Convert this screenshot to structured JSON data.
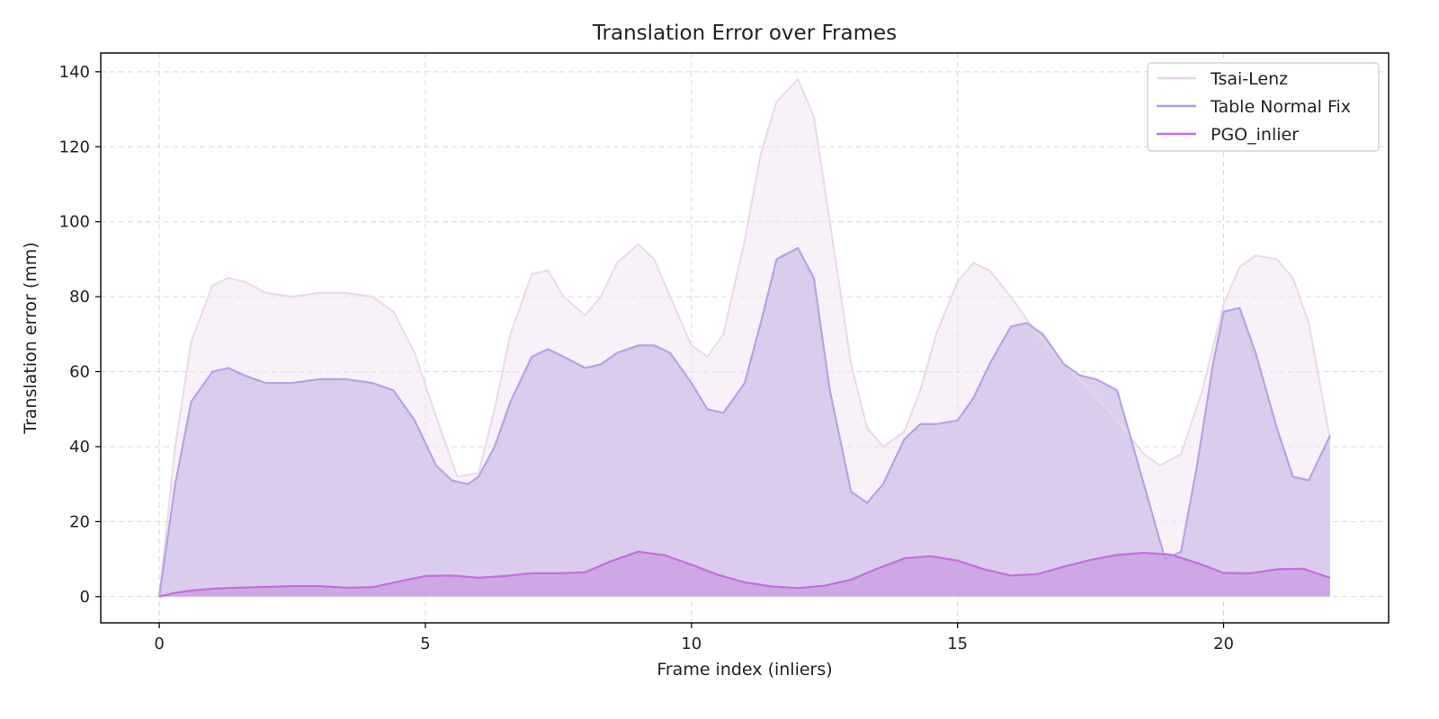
{
  "chart_data": {
    "type": "area",
    "title": "Translation Error over Frames",
    "xlabel": "Frame index (inliers)",
    "ylabel": "Translation error (mm)",
    "xlim": [
      -1.1,
      23.1
    ],
    "ylim": [
      -7,
      145
    ],
    "xticks": [
      0,
      5,
      10,
      15,
      20
    ],
    "yticks": [
      0,
      20,
      40,
      60,
      80,
      100,
      120,
      140
    ],
    "grid": true,
    "legend_position": "top-right",
    "series": [
      {
        "name": "Tsai-Lenz",
        "color": "#e8d5ea",
        "fill": "#f2e8f3",
        "x": [
          0,
          0.3,
          0.6,
          1,
          1.3,
          1.6,
          2,
          2.5,
          3,
          3.5,
          4,
          4.4,
          4.8,
          5.2,
          5.6,
          6,
          6.3,
          6.6,
          7,
          7.3,
          7.6,
          8,
          8.3,
          8.6,
          9,
          9.3,
          9.6,
          10,
          10.3,
          10.6,
          11,
          11.3,
          11.6,
          12,
          12.3,
          12.6,
          13,
          13.3,
          13.6,
          14,
          14.3,
          14.6,
          15,
          15.3,
          15.6,
          16,
          16.5,
          17,
          17.5,
          18,
          18.5,
          18.8,
          19.2,
          19.6,
          20,
          20.3,
          20.6,
          21,
          21.3,
          21.6,
          22
        ],
        "y": [
          0,
          40,
          68,
          83,
          85,
          84,
          81,
          80,
          81,
          81,
          80,
          76,
          65,
          48,
          32,
          33,
          50,
          70,
          86,
          87,
          80,
          75,
          80,
          89,
          94,
          90,
          80,
          67,
          64,
          70,
          95,
          118,
          132,
          138,
          128,
          100,
          62,
          45,
          40,
          44,
          55,
          70,
          84,
          89,
          87,
          80,
          70,
          62,
          55,
          47,
          38,
          35,
          38,
          55,
          78,
          88,
          91,
          90,
          85,
          73,
          42
        ]
      },
      {
        "name": "Table Normal Fix",
        "color": "#b49fe3",
        "fill": "#d5c5eb",
        "x": [
          0,
          0.3,
          0.6,
          1,
          1.3,
          1.6,
          2,
          2.5,
          3,
          3.5,
          4,
          4.4,
          4.8,
          5.2,
          5.5,
          5.8,
          6,
          6.3,
          6.6,
          7,
          7.3,
          7.6,
          8,
          8.3,
          8.6,
          9,
          9.3,
          9.6,
          10,
          10.3,
          10.6,
          11,
          11.3,
          11.6,
          12,
          12.3,
          12.6,
          13,
          13.3,
          13.6,
          14,
          14.3,
          14.6,
          15,
          15.3,
          15.6,
          16,
          16.3,
          16.6,
          17,
          17.3,
          17.6,
          18,
          18.3,
          18.6,
          18.9,
          19.2,
          19.5,
          19.8,
          20,
          20.3,
          20.6,
          21,
          21.3,
          21.6,
          22
        ],
        "y": [
          0,
          30,
          52,
          60,
          61,
          59,
          57,
          57,
          58,
          58,
          57,
          55,
          47,
          35,
          31,
          30,
          32,
          40,
          52,
          64,
          66,
          64,
          61,
          62,
          65,
          67,
          67,
          65,
          57,
          50,
          49,
          57,
          73,
          90,
          93,
          85,
          55,
          28,
          25,
          30,
          42,
          46,
          46,
          47,
          53,
          62,
          72,
          73,
          70,
          62,
          59,
          58,
          55,
          40,
          25,
          10,
          12,
          35,
          62,
          76,
          77,
          65,
          45,
          32,
          31,
          43
        ]
      },
      {
        "name": "PGO_inlier",
        "color": "#c56ede",
        "fill": "#cda0e3",
        "x": [
          0,
          0.3,
          0.6,
          1,
          1.5,
          2,
          2.5,
          3,
          3.5,
          4,
          4.5,
          5,
          5.5,
          6,
          6.5,
          7,
          7.5,
          8,
          8.5,
          9,
          9.5,
          10,
          10.5,
          11,
          11.5,
          12,
          12.5,
          13,
          13.5,
          14,
          14.5,
          15,
          15.5,
          16,
          16.5,
          17,
          17.5,
          18,
          18.5,
          19,
          19.5,
          20,
          20.5,
          21,
          21.5,
          22
        ],
        "y": [
          0,
          1,
          1.6,
          2.1,
          2.4,
          2.6,
          2.8,
          2.8,
          2.4,
          2.5,
          4,
          5.5,
          5.6,
          5,
          5.5,
          6.2,
          6.2,
          6.5,
          9.5,
          12,
          11,
          8.5,
          5.8,
          3.8,
          2.7,
          2.3,
          2.9,
          4.5,
          7.5,
          10.2,
          10.8,
          9.6,
          7.3,
          5.6,
          6,
          8,
          9.8,
          11.1,
          11.7,
          11.2,
          9,
          6.3,
          6.2,
          7.3,
          7.4,
          5
        ]
      }
    ]
  }
}
